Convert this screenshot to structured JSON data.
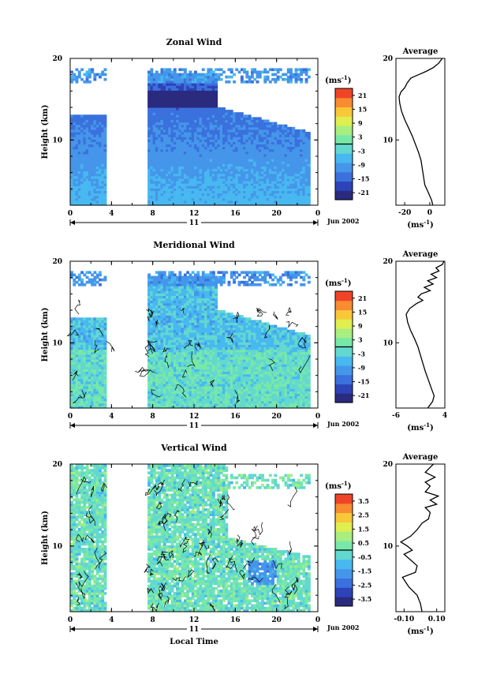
{
  "chart_data": [
    {
      "type": "heatmap",
      "title": "Zonal Wind",
      "ylabel": "Height (km)",
      "ylim": [
        2,
        20
      ],
      "yticks": [
        "20",
        "10"
      ],
      "xticks": [
        "0",
        "4",
        "8",
        "12",
        "16",
        "20",
        "0"
      ],
      "xlim": [
        0,
        24
      ],
      "date_label": "11",
      "month_label": "Jun 2002",
      "data_gap_hours": [
        3.5,
        7.5
      ],
      "data_top_km": 18,
      "colorbar": {
        "unit": "(ms",
        "unit_exp": "-1",
        "unit_close": ")",
        "tick_labels": [
          "21",
          "15",
          "9",
          "3",
          "-3",
          "-9",
          "-15",
          "-21"
        ],
        "range": [
          -24,
          24
        ]
      },
      "profile": {
        "title": "Average",
        "xlabel": "(ms",
        "xlabel_exp": "-1",
        "xlabel_close": ")",
        "xticks": [
          "-20",
          "0"
        ],
        "xtick_values": [
          -20,
          0
        ],
        "xlim": [
          -27,
          12
        ],
        "yticks": [
          "20",
          "10"
        ],
        "ylim": [
          2,
          20
        ],
        "points": [
          [
            2.4,
            2
          ],
          [
            1.5,
            2.6
          ],
          [
            -1,
            3.5
          ],
          [
            -4,
            4.5
          ],
          [
            -5.5,
            6
          ],
          [
            -7,
            7.5
          ],
          [
            -9,
            8.5
          ],
          [
            -11.5,
            9.5
          ],
          [
            -14,
            10.5
          ],
          [
            -17,
            11.5
          ],
          [
            -20,
            12.5
          ],
          [
            -22.5,
            13.5
          ],
          [
            -24,
            14.5
          ],
          [
            -24.5,
            15.3
          ],
          [
            -23,
            15.9
          ],
          [
            -20,
            16.4
          ],
          [
            -18,
            17
          ],
          [
            -15,
            17.6
          ],
          [
            -9,
            18
          ],
          [
            -3,
            18.4
          ],
          [
            3,
            18.9
          ],
          [
            7,
            19.4
          ],
          [
            10,
            20
          ]
        ]
      }
    },
    {
      "type": "heatmap",
      "title": "Meridional Wind",
      "ylabel": "Height (km)",
      "ylim": [
        2,
        20
      ],
      "yticks": [
        "20",
        "10"
      ],
      "xticks": [
        "0",
        "4",
        "8",
        "12",
        "16",
        "20",
        "0"
      ],
      "xlim": [
        0,
        24
      ],
      "date_label": "11",
      "month_label": "Jun 2002",
      "data_gap_hours": [
        3.5,
        7.5
      ],
      "data_top_km": 18,
      "colorbar": {
        "unit": "(ms",
        "unit_exp": "-1",
        "unit_close": ")",
        "tick_labels": [
          "21",
          "15",
          "9",
          "3",
          "-3",
          "-9",
          "-15",
          "-21"
        ],
        "range": [
          -24,
          24
        ]
      },
      "profile": {
        "title": "Average",
        "xlabel": "(ms",
        "xlabel_exp": "-1",
        "xlabel_close": ")",
        "xticks": [
          "-6",
          "4"
        ],
        "xtick_values": [
          -6,
          4
        ],
        "xlim": [
          -6,
          4
        ],
        "yticks": [
          "20",
          "10"
        ],
        "ylim": [
          2,
          20
        ],
        "points": [
          [
            0.5,
            2
          ],
          [
            1.5,
            2.8
          ],
          [
            1.8,
            3.5
          ],
          [
            1.2,
            4.5
          ],
          [
            0.6,
            5.5
          ],
          [
            0,
            6.5
          ],
          [
            -0.5,
            7.5
          ],
          [
            -1,
            8.5
          ],
          [
            -1.5,
            9.5
          ],
          [
            -2.2,
            10.5
          ],
          [
            -3,
            11.5
          ],
          [
            -3.6,
            12.5
          ],
          [
            -3.9,
            13.5
          ],
          [
            -3.2,
            14.2
          ],
          [
            -1.8,
            14.8
          ],
          [
            -0.5,
            15.2
          ],
          [
            -1.5,
            15.6
          ],
          [
            -0.8,
            16
          ],
          [
            1,
            16.4
          ],
          [
            -0.2,
            16.8
          ],
          [
            1.6,
            17.2
          ],
          [
            0.5,
            17.6
          ],
          [
            2.3,
            18
          ],
          [
            1.2,
            18.4
          ],
          [
            2.8,
            18.8
          ],
          [
            2.2,
            19.2
          ],
          [
            3.5,
            19.6
          ],
          [
            3.8,
            20
          ]
        ]
      }
    },
    {
      "type": "heatmap",
      "title": "Vertical Wind",
      "xlabel": "Local Time",
      "ylabel": "Height (km)",
      "ylim": [
        2,
        20
      ],
      "yticks": [
        "20",
        "10"
      ],
      "xticks": [
        "0",
        "4",
        "8",
        "12",
        "16",
        "20",
        "0"
      ],
      "xlim": [
        0,
        24
      ],
      "date_label": "11",
      "month_label": "Jun 2002",
      "data_gap_hours": [
        3.5,
        7.5
      ],
      "data_top_km": 20,
      "colorbar": {
        "unit": "(ms",
        "unit_exp": "-1",
        "unit_close": ")",
        "tick_labels": [
          "3.5",
          "2.5",
          "1.5",
          "0.5",
          "-0.5",
          "-1.5",
          "-2.5",
          "-3.5"
        ],
        "range": [
          -4,
          4
        ]
      },
      "profile": {
        "title": "Average",
        "xlabel": "(ms",
        "xlabel_exp": "-1",
        "xlabel_close": ")",
        "xticks": [
          "-0.10",
          "0.10"
        ],
        "xtick_values": [
          -0.1,
          0.1
        ],
        "xlim": [
          -0.15,
          0.15
        ],
        "yticks": [
          "20",
          "10"
        ],
        "ylim": [
          2,
          20
        ],
        "points": [
          [
            0.01,
            2
          ],
          [
            0,
            3
          ],
          [
            -0.02,
            4
          ],
          [
            -0.07,
            5
          ],
          [
            -0.11,
            6.2
          ],
          [
            -0.03,
            6.8
          ],
          [
            -0.02,
            7.6
          ],
          [
            -0.06,
            8.3
          ],
          [
            -0.1,
            9
          ],
          [
            -0.05,
            9.5
          ],
          [
            -0.08,
            10
          ],
          [
            -0.12,
            10.5
          ],
          [
            -0.06,
            11.2
          ],
          [
            -0.02,
            12
          ],
          [
            0.01,
            12.8
          ],
          [
            0.05,
            13.3
          ],
          [
            0.06,
            14.1
          ],
          [
            0.03,
            14.7
          ],
          [
            0.1,
            15.1
          ],
          [
            0.06,
            15.6
          ],
          [
            0.11,
            16.1
          ],
          [
            0.03,
            16.6
          ],
          [
            0.06,
            17.3
          ],
          [
            0.03,
            17.8
          ],
          [
            0.09,
            18.4
          ],
          [
            0.03,
            19
          ],
          [
            0.06,
            19.6
          ],
          [
            0.08,
            20
          ]
        ]
      }
    }
  ]
}
